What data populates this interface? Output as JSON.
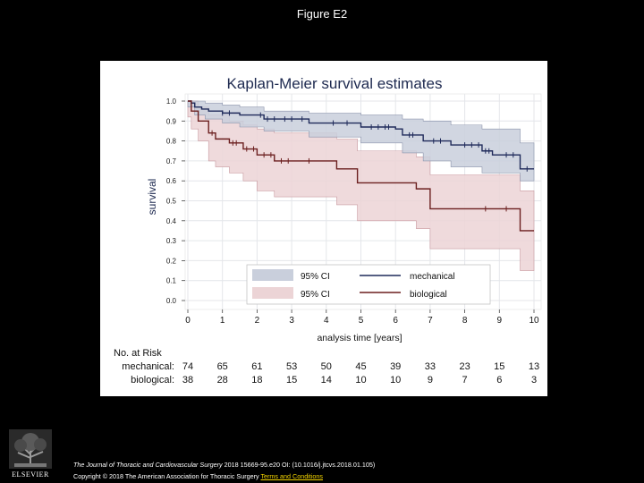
{
  "slide": {
    "title": "Figure E2"
  },
  "chart_data": {
    "type": "line",
    "title": "Kaplan-Meier survival estimates",
    "xlabel": "analysis time [years]",
    "ylabel": "survival",
    "xlim": [
      0,
      10
    ],
    "ylim": [
      0,
      1
    ],
    "xticks": [
      "0",
      "1",
      "2",
      "3",
      "4",
      "5",
      "6",
      "7",
      "8",
      "9",
      "10"
    ],
    "yticks": [
      "0.0",
      "0.1",
      "0.2",
      "0.3",
      "0.4",
      "0.5",
      "0.6",
      "0.7",
      "0.8",
      "0.9",
      "1.0"
    ],
    "grid": true,
    "legend_position": "bottom-right",
    "legend": {
      "ci_label": "95% CI",
      "ci_label_2": "95% CI",
      "series_1": "mechanical",
      "series_2": "biological"
    },
    "series": [
      {
        "name": "mechanical",
        "color": "#1f2a5a",
        "band_color": "#c9cfdc",
        "steps": [
          [
            0,
            1.0
          ],
          [
            0.1,
            0.99
          ],
          [
            0.2,
            0.97
          ],
          [
            0.4,
            0.96
          ],
          [
            0.6,
            0.95
          ],
          [
            1.0,
            0.94
          ],
          [
            1.5,
            0.93
          ],
          [
            2.2,
            0.91
          ],
          [
            3.5,
            0.89
          ],
          [
            5.0,
            0.87
          ],
          [
            6.0,
            0.86
          ],
          [
            6.2,
            0.83
          ],
          [
            6.8,
            0.8
          ],
          [
            7.6,
            0.78
          ],
          [
            8.5,
            0.75
          ],
          [
            8.8,
            0.73
          ],
          [
            9.6,
            0.66
          ],
          [
            10.0,
            0.66
          ]
        ],
        "ci_lower": [
          [
            0,
            0.97
          ],
          [
            0.2,
            0.93
          ],
          [
            0.5,
            0.91
          ],
          [
            1.0,
            0.89
          ],
          [
            1.5,
            0.87
          ],
          [
            2.2,
            0.85
          ],
          [
            3.5,
            0.82
          ],
          [
            5.0,
            0.79
          ],
          [
            6.2,
            0.74
          ],
          [
            6.8,
            0.7
          ],
          [
            7.6,
            0.67
          ],
          [
            8.5,
            0.64
          ],
          [
            9.6,
            0.6
          ],
          [
            10.0,
            0.6
          ]
        ],
        "ci_upper": [
          [
            0,
            1.0
          ],
          [
            0.5,
            0.99
          ],
          [
            1.0,
            0.98
          ],
          [
            1.5,
            0.97
          ],
          [
            2.2,
            0.95
          ],
          [
            3.5,
            0.94
          ],
          [
            5.0,
            0.93
          ],
          [
            6.2,
            0.91
          ],
          [
            6.8,
            0.9
          ],
          [
            7.6,
            0.88
          ],
          [
            8.5,
            0.86
          ],
          [
            9.6,
            0.79
          ],
          [
            10.0,
            0.79
          ]
        ],
        "censored": [
          [
            1.0,
            0.94
          ],
          [
            1.2,
            0.94
          ],
          [
            2.1,
            0.93
          ],
          [
            2.3,
            0.91
          ],
          [
            2.5,
            0.91
          ],
          [
            2.8,
            0.91
          ],
          [
            3.0,
            0.91
          ],
          [
            3.3,
            0.91
          ],
          [
            4.2,
            0.89
          ],
          [
            4.6,
            0.89
          ],
          [
            5.3,
            0.87
          ],
          [
            5.5,
            0.87
          ],
          [
            5.7,
            0.87
          ],
          [
            5.8,
            0.87
          ],
          [
            6.4,
            0.83
          ],
          [
            6.5,
            0.83
          ],
          [
            7.1,
            0.8
          ],
          [
            7.3,
            0.8
          ],
          [
            8.0,
            0.78
          ],
          [
            8.2,
            0.78
          ],
          [
            8.4,
            0.78
          ],
          [
            8.6,
            0.75
          ],
          [
            8.7,
            0.75
          ],
          [
            9.2,
            0.73
          ],
          [
            9.4,
            0.73
          ],
          [
            9.8,
            0.66
          ]
        ]
      },
      {
        "name": "biological",
        "color": "#6b1f1f",
        "band_color": "#ecd4d6",
        "steps": [
          [
            0,
            1.0
          ],
          [
            0.1,
            0.95
          ],
          [
            0.3,
            0.9
          ],
          [
            0.6,
            0.84
          ],
          [
            0.8,
            0.81
          ],
          [
            1.2,
            0.79
          ],
          [
            1.6,
            0.76
          ],
          [
            2.0,
            0.73
          ],
          [
            2.5,
            0.7
          ],
          [
            3.0,
            0.7
          ],
          [
            4.3,
            0.66
          ],
          [
            4.6,
            0.66
          ],
          [
            4.9,
            0.59
          ],
          [
            6.6,
            0.56
          ],
          [
            7.0,
            0.46
          ],
          [
            9.0,
            0.46
          ],
          [
            9.6,
            0.35
          ],
          [
            10.0,
            0.35
          ]
        ],
        "ci_lower": [
          [
            0,
            0.92
          ],
          [
            0.1,
            0.86
          ],
          [
            0.3,
            0.8
          ],
          [
            0.6,
            0.7
          ],
          [
            0.8,
            0.67
          ],
          [
            1.2,
            0.64
          ],
          [
            1.6,
            0.6
          ],
          [
            2.0,
            0.55
          ],
          [
            2.5,
            0.52
          ],
          [
            3.0,
            0.52
          ],
          [
            4.3,
            0.48
          ],
          [
            4.9,
            0.4
          ],
          [
            6.6,
            0.36
          ],
          [
            7.0,
            0.26
          ],
          [
            9.0,
            0.26
          ],
          [
            9.6,
            0.15
          ],
          [
            10.0,
            0.15
          ]
        ],
        "ci_upper": [
          [
            0,
            1.0
          ],
          [
            0.3,
            0.97
          ],
          [
            0.6,
            0.93
          ],
          [
            1.2,
            0.9
          ],
          [
            1.6,
            0.88
          ],
          [
            2.0,
            0.86
          ],
          [
            2.5,
            0.84
          ],
          [
            3.0,
            0.84
          ],
          [
            4.3,
            0.81
          ],
          [
            4.9,
            0.75
          ],
          [
            6.6,
            0.72
          ],
          [
            7.0,
            0.63
          ],
          [
            9.0,
            0.63
          ],
          [
            9.6,
            0.55
          ],
          [
            10.0,
            0.55
          ]
        ],
        "censored": [
          [
            0.7,
            0.84
          ],
          [
            1.3,
            0.79
          ],
          [
            1.4,
            0.79
          ],
          [
            1.7,
            0.76
          ],
          [
            1.9,
            0.76
          ],
          [
            2.2,
            0.73
          ],
          [
            2.4,
            0.73
          ],
          [
            2.7,
            0.7
          ],
          [
            2.9,
            0.7
          ],
          [
            3.5,
            0.7
          ],
          [
            8.6,
            0.46
          ],
          [
            9.2,
            0.46
          ]
        ]
      }
    ],
    "risk_table": {
      "title": "No. at Risk",
      "times": [
        0,
        1,
        2,
        3,
        4,
        5,
        6,
        7,
        8,
        9,
        10
      ],
      "rows": [
        {
          "label": "mechanical:",
          "values": [
            "74",
            "65",
            "61",
            "53",
            "50",
            "45",
            "39",
            "33",
            "23",
            "15",
            "13"
          ]
        },
        {
          "label": "biological:",
          "values": [
            "38",
            "28",
            "18",
            "15",
            "14",
            "10",
            "10",
            "9",
            "7",
            "6",
            "3"
          ]
        }
      ]
    }
  },
  "footer": {
    "journal": "The Journal of Thoracic and Cardiovascular Surgery",
    "citation": " 2018 15669-95.e20 OI: (10.1016/j.jtcvs.2018.01.105)",
    "copyright": "Copyright © 2018 The American Association for Thoracic Surgery ",
    "terms": "Terms and Conditions",
    "logo_text": "ELSEVIER"
  }
}
